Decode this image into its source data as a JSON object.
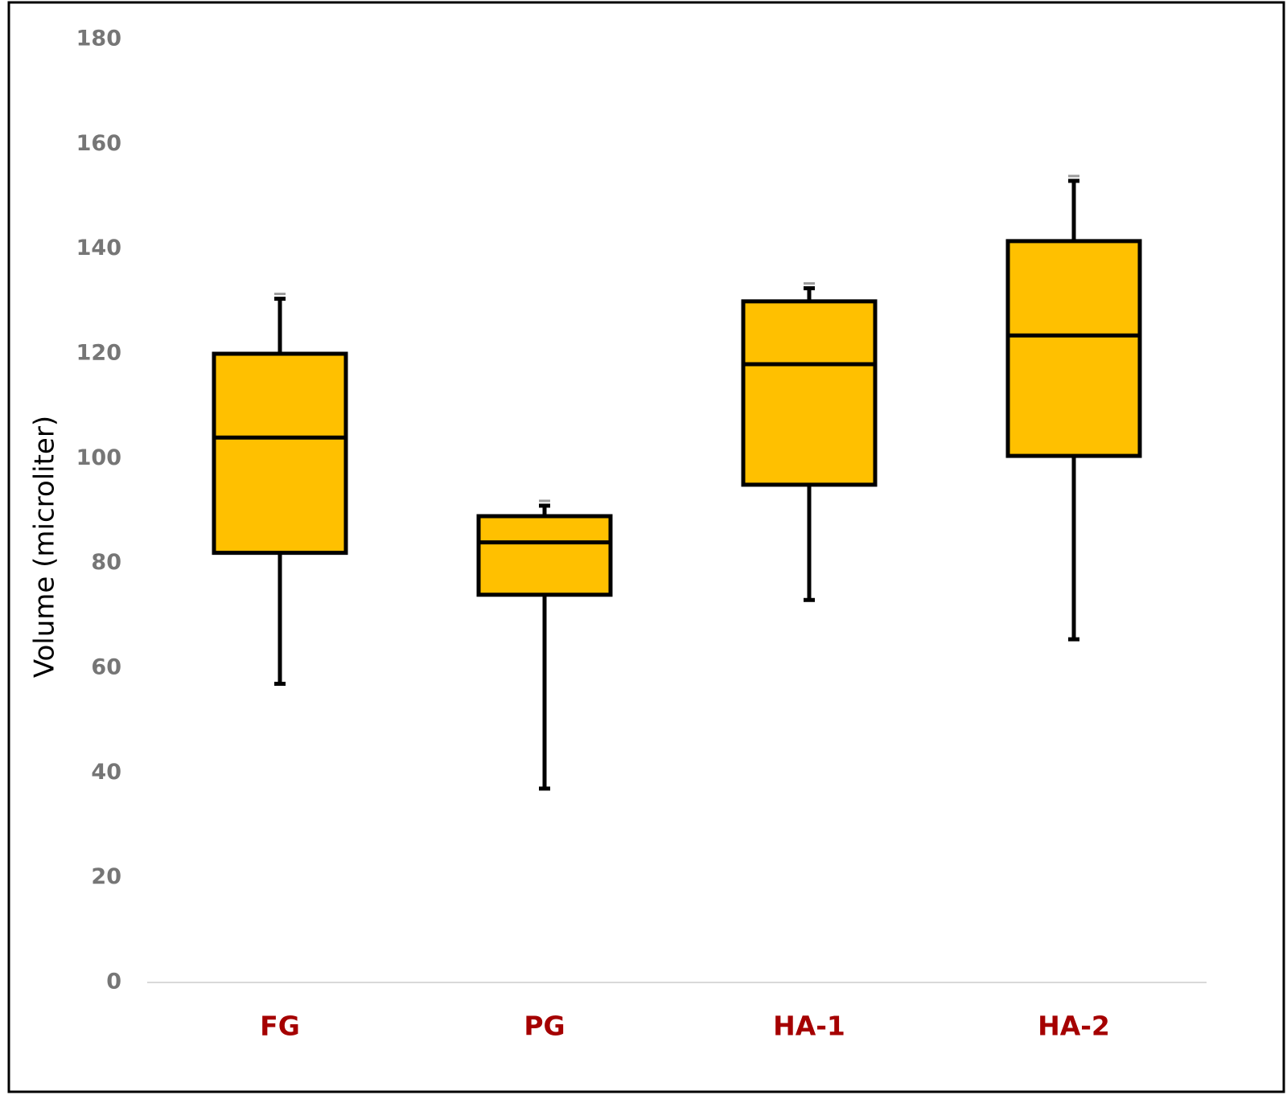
{
  "chart_data": {
    "type": "box",
    "title": "",
    "xlabel": "",
    "ylabel": "Volume (microliter)",
    "ylim": [
      0,
      180
    ],
    "yticks": [
      0,
      20,
      40,
      60,
      80,
      100,
      120,
      140,
      160,
      180
    ],
    "grid": false,
    "legend": "none",
    "categories": [
      "FG",
      "PG",
      "HA-1",
      "HA-2"
    ],
    "boxes": [
      {
        "category": "FG",
        "min": 57,
        "q1": 82,
        "median": 104,
        "q3": 120,
        "max": 130.5
      },
      {
        "category": "PG",
        "min": 37,
        "q1": 74,
        "median": 84,
        "q3": 89,
        "max": 91
      },
      {
        "category": "HA-1",
        "min": 73,
        "q1": 95,
        "median": 118,
        "q3": 130,
        "max": 132.5
      },
      {
        "category": "HA-2",
        "min": 65.5,
        "q1": 100.5,
        "median": 123.5,
        "q3": 141.5,
        "max": 153
      }
    ],
    "colors": {
      "box_fill": "#FFC000",
      "box_stroke": "#000000",
      "x_tick_label": "#A50000",
      "y_tick_label": "#767676",
      "baseline": "#D9D9D9",
      "frame": "#000000"
    }
  }
}
